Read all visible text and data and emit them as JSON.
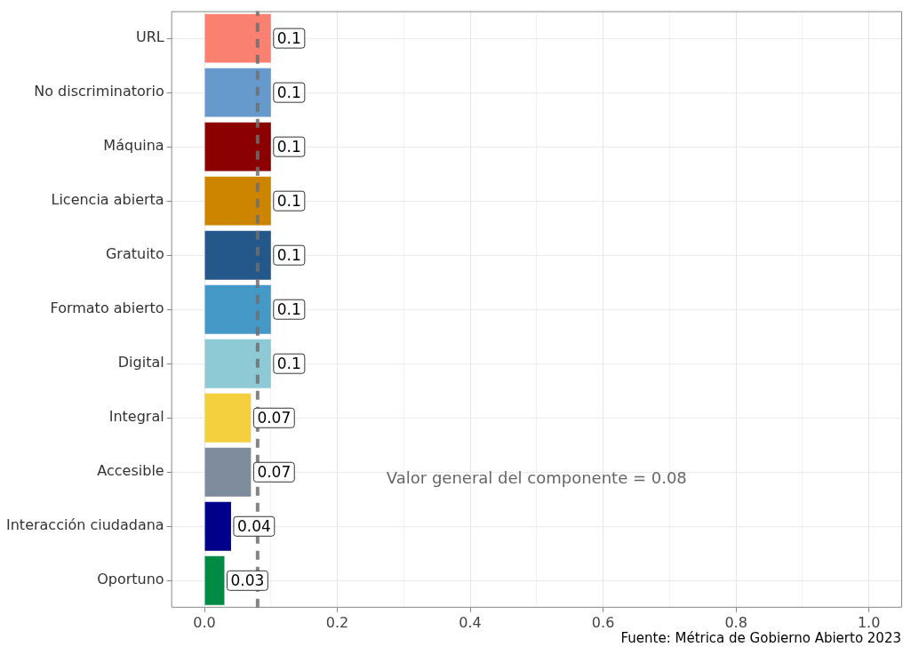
{
  "chart_data": {
    "type": "bar",
    "orientation": "horizontal",
    "categories": [
      "URL",
      "No discriminatorio",
      "Máquina",
      "Licencia abierta",
      "Gratuito",
      "Formato abierto",
      "Digital",
      "Integral",
      "Accesible",
      "Interacción ciudadana",
      "Oportuno"
    ],
    "values": [
      0.1,
      0.1,
      0.1,
      0.1,
      0.1,
      0.1,
      0.1,
      0.07,
      0.07,
      0.04,
      0.03
    ],
    "colors": [
      "#fa8072",
      "#6699cc",
      "#8b0000",
      "#cd8500",
      "#24578a",
      "#4499c7",
      "#8ecad6",
      "#f4d03f",
      "#7f8c9d",
      "#00008b",
      "#008b45"
    ],
    "xlim": [
      -0.05,
      1.05
    ],
    "xticks": [
      {
        "value": 0,
        "label": "0.0"
      },
      {
        "value": 0.1,
        "label": null
      },
      0.2,
      {
        "value": 0.3,
        "label": null
      },
      0.4,
      {
        "value": 0.5,
        "label": null
      },
      0.6,
      {
        "value": 0.7,
        "label": null
      },
      0.8,
      {
        "value": 0.9,
        "label": null
      },
      {
        "value": 1,
        "label": "1.0"
      }
    ],
    "grid": true,
    "legend": false,
    "data_labels": true,
    "ref_lines": [
      {
        "axis": "x",
        "value": 0.08,
        "color": "#6e6e6e",
        "line_style": "dashed",
        "label": "Valor general del componente = 0.08"
      }
    ],
    "annotations": [
      "Fuente: Métrica de Gobierno Abierto 2023"
    ]
  }
}
